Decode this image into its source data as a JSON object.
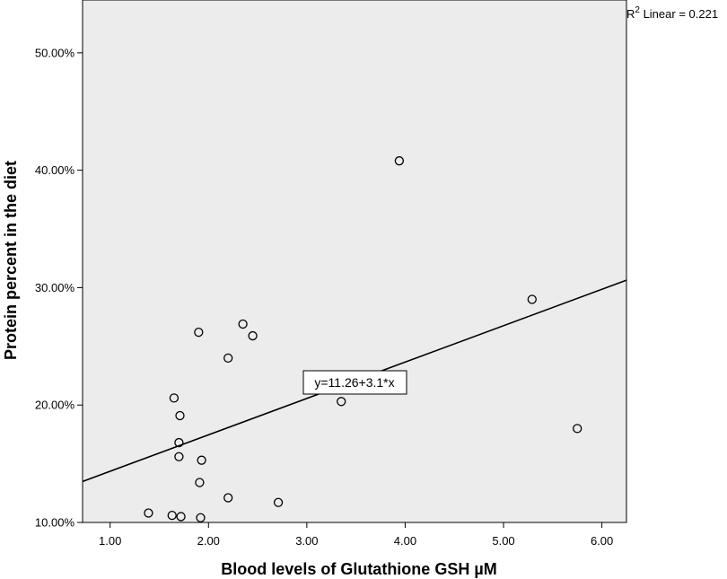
{
  "chart_data": {
    "type": "scatter",
    "title": "",
    "xlabel": "Blood levels of Glutathione GSH µM",
    "ylabel": "Protein percent in the diet",
    "xlim": [
      0.72,
      6.25
    ],
    "ylim": [
      10.0,
      54.5
    ],
    "x_ticks": [
      1.0,
      2.0,
      3.0,
      4.0,
      5.0,
      6.0
    ],
    "x_tick_labels": [
      "1.00",
      "2.00",
      "3.00",
      "4.00",
      "5.00",
      "6.00"
    ],
    "y_ticks": [
      10,
      20,
      30,
      40,
      50
    ],
    "y_tick_labels": [
      "10.00%",
      "20.00%",
      "30.00%",
      "40.00%",
      "50.00%"
    ],
    "grid": false,
    "background_color": "#ececec",
    "points": [
      {
        "x": 1.39,
        "y": 10.8
      },
      {
        "x": 1.63,
        "y": 10.6
      },
      {
        "x": 1.72,
        "y": 10.5
      },
      {
        "x": 1.92,
        "y": 10.4
      },
      {
        "x": 1.65,
        "y": 20.6
      },
      {
        "x": 1.71,
        "y": 19.1
      },
      {
        "x": 1.7,
        "y": 16.8
      },
      {
        "x": 1.7,
        "y": 15.6
      },
      {
        "x": 1.93,
        "y": 15.3
      },
      {
        "x": 1.91,
        "y": 13.4
      },
      {
        "x": 2.2,
        "y": 12.1
      },
      {
        "x": 1.9,
        "y": 26.2
      },
      {
        "x": 2.2,
        "y": 24.0
      },
      {
        "x": 2.35,
        "y": 26.9
      },
      {
        "x": 2.45,
        "y": 25.9
      },
      {
        "x": 2.71,
        "y": 11.7
      },
      {
        "x": 3.35,
        "y": 20.3
      },
      {
        "x": 3.94,
        "y": 40.8
      },
      {
        "x": 5.29,
        "y": 29.0
      },
      {
        "x": 5.75,
        "y": 18.0
      }
    ],
    "fit_line": {
      "intercept": 11.26,
      "slope": 3.1,
      "equation_label": "y=11.26+3.1*x",
      "r2_prefix": "R",
      "r2_superscript": "2",
      "r2_text": " Linear = 0.221"
    }
  }
}
